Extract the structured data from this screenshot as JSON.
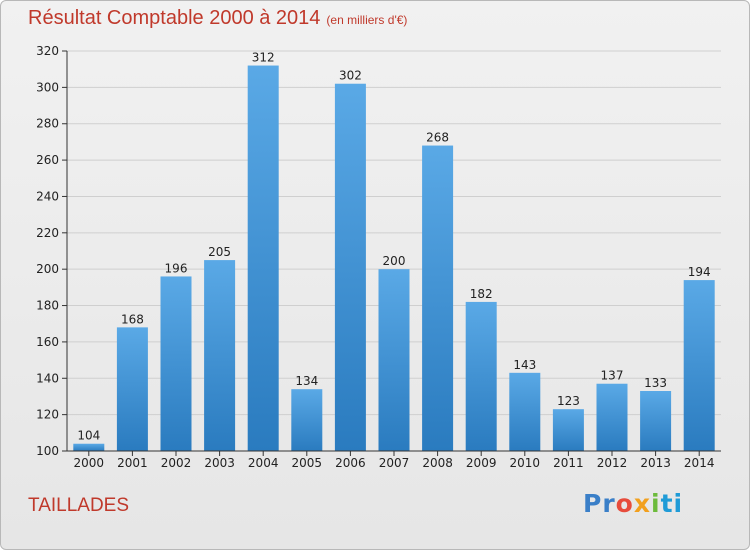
{
  "header": {
    "title": "Résultat Comptable 2000 à 2014",
    "subtitle": "(en milliers d'€)"
  },
  "footer": {
    "commune": "TAILLADES",
    "logo": {
      "p1": "Pr",
      "p2": "o",
      "p3": "x",
      "p4": "i",
      "p5": "ti"
    }
  },
  "colors": {
    "title": "#c0392b",
    "bar_light": "#5aa9e6",
    "bar_dark": "#2a7bbf"
  },
  "chart_data": {
    "type": "bar",
    "title": "Résultat Comptable 2000 à 2014",
    "subtitle": "(en milliers d'€)",
    "categories": [
      "2000",
      "2001",
      "2002",
      "2003",
      "2004",
      "2005",
      "2006",
      "2007",
      "2008",
      "2009",
      "2010",
      "2011",
      "2012",
      "2013",
      "2014"
    ],
    "values": [
      104,
      168,
      196,
      205,
      312,
      134,
      302,
      200,
      268,
      182,
      143,
      123,
      137,
      133,
      194
    ],
    "ylim": [
      100,
      320
    ],
    "yticks": [
      100,
      120,
      140,
      160,
      180,
      200,
      220,
      240,
      260,
      280,
      300,
      320
    ],
    "grid": true,
    "data_labels": true
  }
}
